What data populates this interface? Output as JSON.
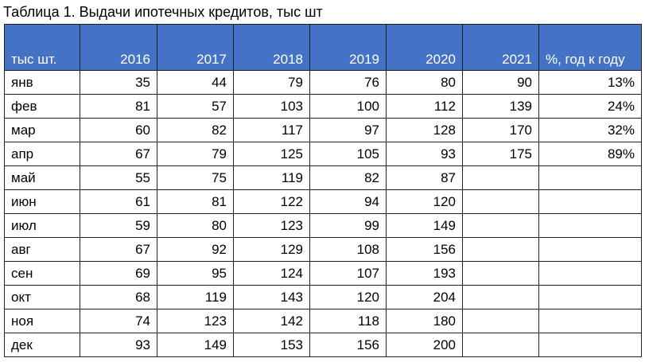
{
  "header": {
    "title": "Таблица 1. Выдачи ипотечных кредитов, тыс шт"
  },
  "table": {
    "columns": [
      "тыс шт.",
      "2016",
      "2017",
      "2018",
      "2019",
      "2020",
      "2021",
      "%, год к году"
    ],
    "rows": [
      [
        "янв",
        35,
        44,
        79,
        76,
        80,
        90,
        "13%"
      ],
      [
        "фев",
        81,
        57,
        103,
        100,
        112,
        139,
        "24%"
      ],
      [
        "мар",
        60,
        82,
        117,
        97,
        128,
        170,
        "32%"
      ],
      [
        "апр",
        67,
        79,
        125,
        105,
        93,
        175,
        "89%"
      ],
      [
        "май",
        55,
        75,
        119,
        82,
        87
      ],
      [
        "июн",
        61,
        81,
        122,
        94,
        120
      ],
      [
        "июл",
        59,
        80,
        123,
        99,
        149
      ],
      [
        "авг",
        67,
        92,
        129,
        108,
        156
      ],
      [
        "сен",
        69,
        95,
        124,
        107,
        193
      ],
      [
        "окт",
        68,
        119,
        143,
        120,
        204
      ],
      [
        "ноя",
        74,
        123,
        142,
        118,
        180
      ],
      [
        "дек",
        93,
        149,
        153,
        156,
        200
      ]
    ]
  }
}
